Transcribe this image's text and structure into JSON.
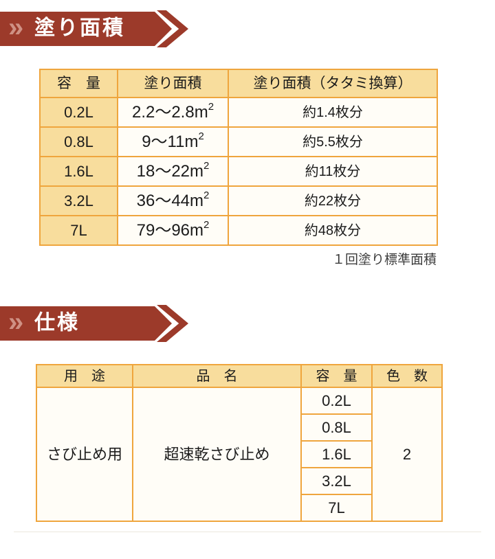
{
  "colors": {
    "banner_red": "#9c3a2a",
    "banner_chevron_pink": "#cf9184",
    "table_border_orange": "#efa53d",
    "header_tan": "#f8dd9d",
    "cell_cream": "#fffdf7",
    "text_dark": "#1b1b1b"
  },
  "sections": {
    "paint_area": {
      "banner": {
        "chevron_glyph": "»",
        "title": "塗り面積"
      },
      "table": {
        "headers": [
          "容　量",
          "塗り面積",
          "塗り面積（タタミ換算）"
        ],
        "rows": [
          {
            "capacity": "0.2L",
            "area": "2.2〜2.8m",
            "area_sup": "2",
            "tatami": "約1.4枚分"
          },
          {
            "capacity": "0.8L",
            "area": "9〜11m",
            "area_sup": "2",
            "tatami": "約5.5枚分"
          },
          {
            "capacity": "1.6L",
            "area": "18〜22m",
            "area_sup": "2",
            "tatami": "約11枚分"
          },
          {
            "capacity": "3.2L",
            "area": "36〜44m",
            "area_sup": "2",
            "tatami": "約22枚分"
          },
          {
            "capacity": "7L",
            "area": "79〜96m",
            "area_sup": "2",
            "tatami": "約48枚分"
          }
        ]
      },
      "caption": "１回塗り標準面積"
    },
    "spec": {
      "banner": {
        "chevron_glyph": "»",
        "title": "仕様"
      },
      "table": {
        "headers": [
          "用　途",
          "品　名",
          "容　量",
          "色　数"
        ],
        "usage": "さび止め用",
        "product_name": "超速乾さび止め",
        "capacities": [
          "0.2L",
          "0.8L",
          "1.6L",
          "3.2L",
          "7L"
        ],
        "color_count": "2"
      }
    }
  }
}
